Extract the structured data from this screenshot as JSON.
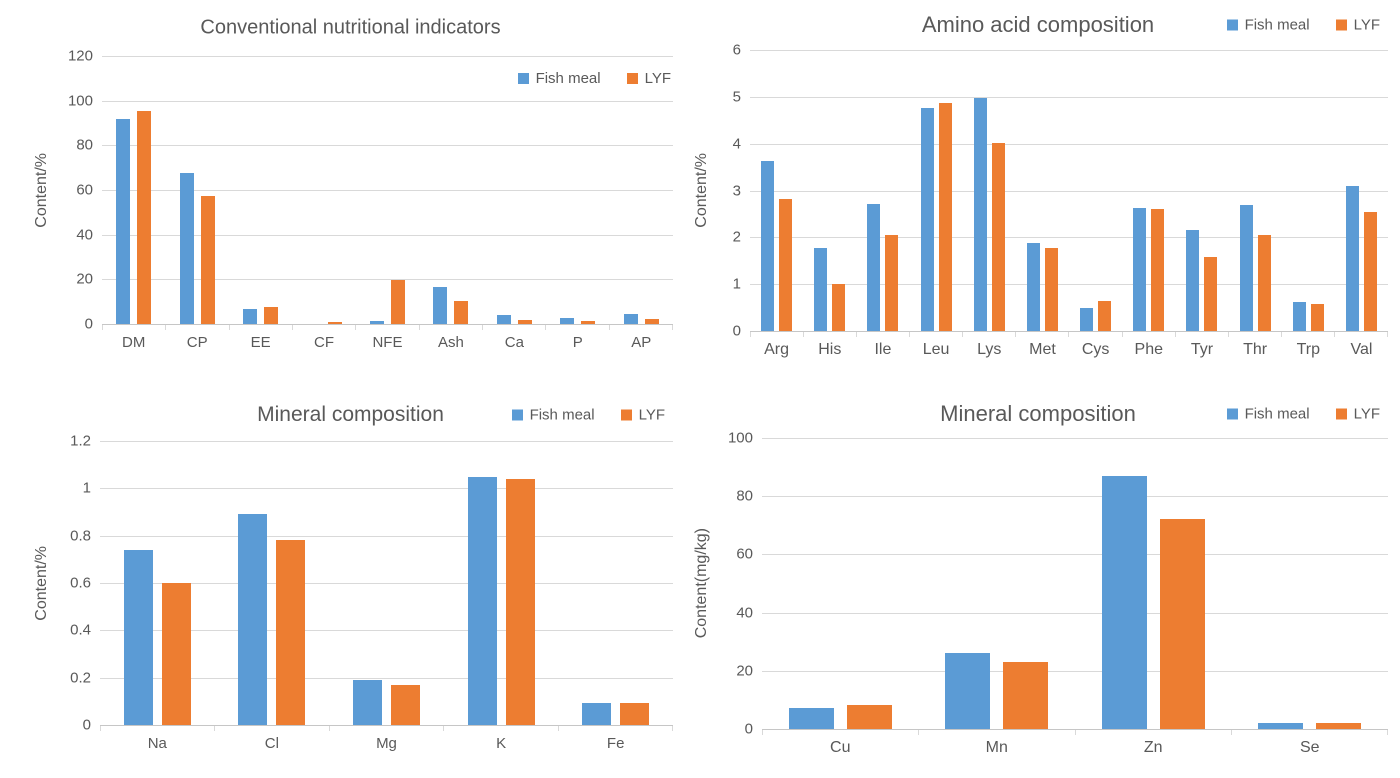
{
  "colors": {
    "fish_meal": "#5B9BD5",
    "lyf": "#ED7D31",
    "gridline": "#D9D9D9",
    "axis_line": "#C6C6C6",
    "text": "#595959"
  },
  "legend": {
    "items": [
      {
        "label": "Fish meal",
        "color": "#5B9BD5"
      },
      {
        "label": "LYF",
        "color": "#ED7D31"
      }
    ]
  },
  "chart_data": [
    {
      "id": "conventional-nutritional-indicators",
      "type": "bar",
      "title": "Conventional nutritional indicators",
      "xlabel": "",
      "ylabel": "Content/%",
      "ylim": [
        0,
        120
      ],
      "yticks": [
        0,
        20,
        40,
        60,
        80,
        100,
        120
      ],
      "ytick_labels": [
        "0",
        "20",
        "40",
        "60",
        "80",
        "100",
        "120"
      ],
      "grid": true,
      "legend_position": "inside-top-right",
      "categories": [
        "DM",
        "CP",
        "EE",
        "CF",
        "NFE",
        "Ash",
        "Ca",
        "P",
        "AP"
      ],
      "series": [
        {
          "name": "Fish meal",
          "color": "#5B9BD5",
          "values": [
            92,
            67.4,
            6.5,
            0,
            1.5,
            16.4,
            4.1,
            2.7,
            4.6
          ]
        },
        {
          "name": "LYF",
          "color": "#ED7D31",
          "values": [
            95.5,
            57.2,
            7.8,
            1.1,
            19.8,
            10.2,
            1.9,
            1.2,
            2.2
          ]
        }
      ]
    },
    {
      "id": "amino-acid-composition",
      "type": "bar",
      "title": "Amino acid composition",
      "xlabel": "",
      "ylabel": "Content/%",
      "ylim": [
        0,
        6
      ],
      "yticks": [
        0,
        1,
        2,
        3,
        4,
        5,
        6
      ],
      "ytick_labels": [
        "0",
        "1",
        "2",
        "3",
        "4",
        "5",
        "6"
      ],
      "grid": true,
      "legend_position": "top-right",
      "categories": [
        "Arg",
        "His",
        "Ile",
        "Leu",
        "Lys",
        "Met",
        "Cys",
        "Phe",
        "Tyr",
        "Thr",
        "Trp",
        "Val"
      ],
      "series": [
        {
          "name": "Fish meal",
          "color": "#5B9BD5",
          "values": [
            3.63,
            1.78,
            2.72,
            4.76,
            4.97,
            1.89,
            0.49,
            2.62,
            2.16,
            2.7,
            0.61,
            3.1
          ]
        },
        {
          "name": "LYF",
          "color": "#ED7D31",
          "values": [
            2.81,
            1.0,
            2.04,
            4.86,
            4.02,
            1.78,
            0.64,
            2.6,
            1.59,
            2.04,
            0.57,
            2.54
          ]
        }
      ]
    },
    {
      "id": "mineral-composition-percent",
      "type": "bar",
      "title": "Mineral composition",
      "xlabel": "",
      "ylabel": "Content/%",
      "ylim": [
        0,
        1.2
      ],
      "yticks": [
        0,
        0.2,
        0.4,
        0.6,
        0.8,
        1,
        1.2
      ],
      "ytick_labels": [
        "0",
        "0.2",
        "0.4",
        "0.6",
        "0.8",
        "1",
        "1.2"
      ],
      "grid": true,
      "legend_position": "top-right",
      "categories": [
        "Na",
        "Cl",
        "Mg",
        "K",
        "Fe"
      ],
      "series": [
        {
          "name": "Fish meal",
          "color": "#5B9BD5",
          "values": [
            0.74,
            0.89,
            0.19,
            1.05,
            0.095
          ]
        },
        {
          "name": "LYF",
          "color": "#ED7D31",
          "values": [
            0.6,
            0.78,
            0.17,
            1.04,
            0.095
          ]
        }
      ]
    },
    {
      "id": "mineral-composition-mgkg",
      "type": "bar",
      "title": "Mineral composition",
      "xlabel": "",
      "ylabel": "Content(mg/kg)",
      "ylim": [
        0,
        100
      ],
      "yticks": [
        0,
        20,
        40,
        60,
        80,
        100
      ],
      "ytick_labels": [
        "0",
        "20",
        "40",
        "60",
        "80",
        "100"
      ],
      "grid": true,
      "legend_position": "top-right",
      "categories": [
        "Cu",
        "Mn",
        "Zn",
        "Se"
      ],
      "series": [
        {
          "name": "Fish meal",
          "color": "#5B9BD5",
          "values": [
            7.2,
            26,
            87,
            2
          ]
        },
        {
          "name": "LYF",
          "color": "#ED7D31",
          "values": [
            8.3,
            23.2,
            72,
            2
          ]
        }
      ]
    }
  ]
}
